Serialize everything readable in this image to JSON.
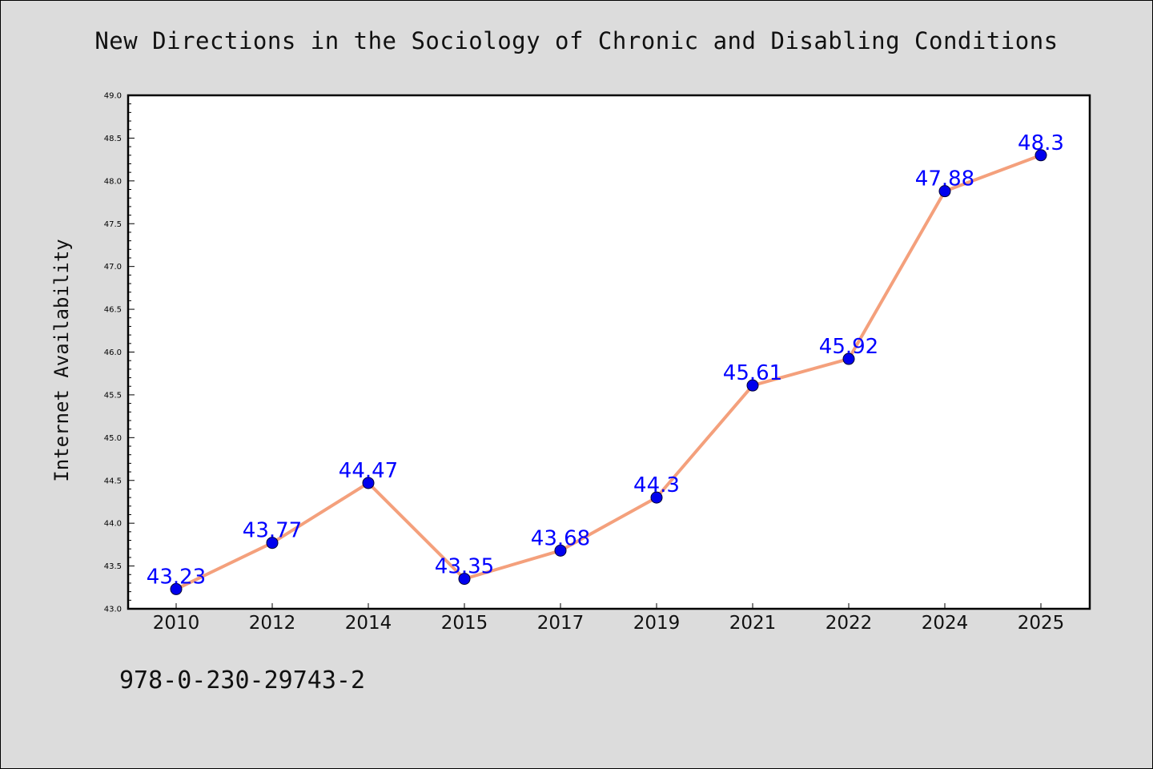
{
  "chart_data": {
    "type": "line",
    "title": "New Directions in the Sociology of Chronic and Disabling Conditions",
    "xlabel": "",
    "ylabel": "Internet Availability",
    "categories": [
      "2010",
      "2012",
      "2014",
      "2015",
      "2017",
      "2019",
      "2021",
      "2022",
      "2024",
      "2025"
    ],
    "series": [
      {
        "values": [
          43.23,
          43.77,
          44.47,
          43.35,
          43.68,
          44.3,
          45.61,
          45.92,
          47.88,
          48.3
        ],
        "labels": [
          "43.23",
          "43.77",
          "44.47",
          "43.35",
          "43.68",
          "44.3",
          "45.61",
          "45.92",
          "47.88",
          "48.3"
        ],
        "line_color": "#f4a07c",
        "marker_color": "#0000ee",
        "label_color": "#0000ff"
      }
    ],
    "ylim": [
      43.0,
      49.0
    ],
    "yticks": [
      "43.0",
      "43.5",
      "44.0",
      "44.5",
      "45.0",
      "45.5",
      "46.0",
      "46.5",
      "47.0",
      "47.5",
      "48.0",
      "48.5",
      "49.0"
    ],
    "grid": false,
    "legend": "none"
  },
  "footer": {
    "isbn": "978-0-230-29743-2"
  },
  "colors": {
    "background": "#dcdcdc",
    "plot_background": "#ffffff"
  }
}
